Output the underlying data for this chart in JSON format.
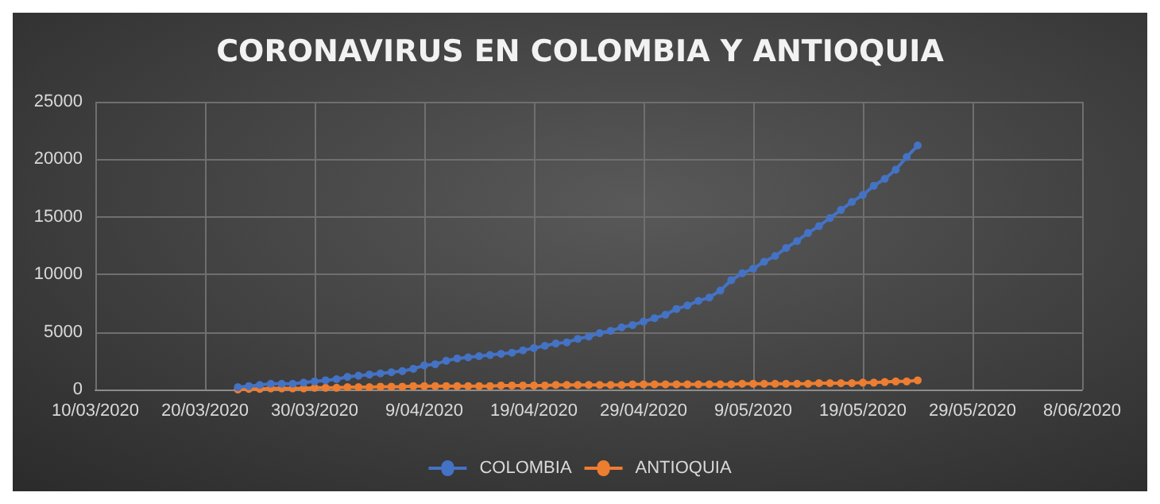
{
  "chart_data": {
    "type": "line",
    "title": "CORONAVIRUS EN COLOMBIA Y ANTIOQUIA",
    "x": [
      "2020-03-23",
      "2020-03-24",
      "2020-03-25",
      "2020-03-26",
      "2020-03-27",
      "2020-03-28",
      "2020-03-29",
      "2020-03-30",
      "2020-03-31",
      "2020-04-01",
      "2020-04-02",
      "2020-04-03",
      "2020-04-04",
      "2020-04-05",
      "2020-04-06",
      "2020-04-07",
      "2020-04-08",
      "2020-04-09",
      "2020-04-10",
      "2020-04-11",
      "2020-04-12",
      "2020-04-13",
      "2020-04-14",
      "2020-04-15",
      "2020-04-16",
      "2020-04-17",
      "2020-04-18",
      "2020-04-19",
      "2020-04-20",
      "2020-04-21",
      "2020-04-22",
      "2020-04-23",
      "2020-04-24",
      "2020-04-25",
      "2020-04-26",
      "2020-04-27",
      "2020-04-28",
      "2020-04-29",
      "2020-04-30",
      "2020-05-01",
      "2020-05-02",
      "2020-05-03",
      "2020-05-04",
      "2020-05-05",
      "2020-05-06",
      "2020-05-07",
      "2020-05-08",
      "2020-05-09",
      "2020-05-10",
      "2020-05-11",
      "2020-05-12",
      "2020-05-13",
      "2020-05-14",
      "2020-05-15",
      "2020-05-16",
      "2020-05-17",
      "2020-05-18",
      "2020-05-19",
      "2020-05-20",
      "2020-05-21",
      "2020-05-22",
      "2020-05-23",
      "2020-05-24"
    ],
    "series": [
      {
        "name": "COLOMBIA",
        "color": "#4472c4",
        "values": [
          200,
          300,
          400,
          500,
          500,
          500,
          600,
          700,
          800,
          900,
          1100,
          1200,
          1300,
          1400,
          1500,
          1600,
          1800,
          2100,
          2200,
          2500,
          2700,
          2800,
          2900,
          3000,
          3100,
          3200,
          3400,
          3600,
          3800,
          4000,
          4100,
          4400,
          4600,
          4900,
          5100,
          5400,
          5600,
          5900,
          6200,
          6500,
          7000,
          7300,
          7700,
          8000,
          8600,
          9500,
          10100,
          10500,
          11100,
          11600,
          12300,
          12900,
          13600,
          14200,
          14900,
          15600,
          16300,
          16900,
          17700,
          18300,
          19100,
          20200,
          21200
        ]
      },
      {
        "name": "ANTIOQUIA",
        "color": "#ed7d31",
        "values": [
          0,
          50,
          50,
          100,
          100,
          100,
          100,
          150,
          150,
          150,
          200,
          200,
          200,
          250,
          250,
          250,
          300,
          300,
          300,
          300,
          300,
          300,
          300,
          300,
          350,
          350,
          350,
          350,
          350,
          400,
          400,
          400,
          400,
          400,
          400,
          400,
          450,
          450,
          450,
          450,
          450,
          450,
          450,
          450,
          450,
          450,
          500,
          500,
          500,
          500,
          500,
          500,
          500,
          550,
          550,
          550,
          550,
          600,
          600,
          650,
          700,
          700,
          800
        ]
      }
    ],
    "xlim": [
      "2020-03-10",
      "2020-06-08"
    ],
    "xticks": [
      {
        "value": "2020-03-10",
        "label": "10/03/2020"
      },
      {
        "value": "2020-03-20",
        "label": "20/03/2020"
      },
      {
        "value": "2020-03-30",
        "label": "30/03/2020"
      },
      {
        "value": "2020-04-09",
        "label": "9/04/2020"
      },
      {
        "value": "2020-04-19",
        "label": "19/04/2020"
      },
      {
        "value": "2020-04-29",
        "label": "29/04/2020"
      },
      {
        "value": "2020-05-09",
        "label": "9/05/2020"
      },
      {
        "value": "2020-05-19",
        "label": "19/05/2020"
      },
      {
        "value": "2020-05-29",
        "label": "29/05/2020"
      },
      {
        "value": "2020-06-08",
        "label": "8/06/2020"
      }
    ],
    "ylim": [
      0,
      25000
    ],
    "yticks": [
      0,
      5000,
      10000,
      15000,
      20000,
      25000
    ],
    "grid": true,
    "legend": "bottom",
    "marker": "circle",
    "line_style": "solid"
  }
}
